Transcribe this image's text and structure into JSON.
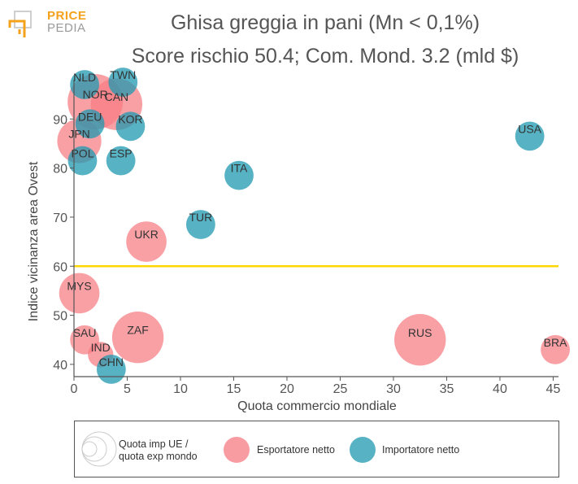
{
  "logo": {
    "line1": "PRICE",
    "line2": "PEDIA"
  },
  "title_line1": "Ghisa greggia in pani (Mn < 0,1%)",
  "title_line2": "Score rischio 50.4; Com. Mond. 3.2 (mld $)",
  "colors": {
    "exporter": "#f77b82",
    "importer": "#1f98b0",
    "threshold": "#ffd700",
    "axis": "#555555"
  },
  "legend": {
    "size_label": "Quota imp UE / quota exp mondo",
    "size_label_line1": "Quota imp UE /",
    "size_label_line2": "quota exp mondo",
    "exporter_label": "Esportatore netto",
    "importer_label": "Importatore netto"
  },
  "chart_data": {
    "type": "scatter",
    "xlabel": "Quota commercio mondiale",
    "ylabel": "Indice vicinanza area Ovest",
    "xlim": [
      0,
      45.5
    ],
    "ylim": [
      37.5,
      98
    ],
    "xticks": [
      0,
      5,
      10,
      15,
      20,
      25,
      30,
      35,
      40,
      45
    ],
    "yticks": [
      40,
      50,
      60,
      70,
      80,
      90
    ],
    "threshold_y": 60,
    "grid": false,
    "points": [
      {
        "label": "NOR",
        "x": 2.0,
        "y": 93.5,
        "type": "exporter",
        "size": 1.0
      },
      {
        "label": "CAN",
        "x": 4.0,
        "y": 93.0,
        "type": "exporter",
        "size": 0.9
      },
      {
        "label": "JPN",
        "x": 0.5,
        "y": 85.5,
        "type": "exporter",
        "size": 0.7
      },
      {
        "label": "UKR",
        "x": 6.8,
        "y": 65.0,
        "type": "exporter",
        "size": 0.6
      },
      {
        "label": "MYS",
        "x": 0.5,
        "y": 54.5,
        "type": "exporter",
        "size": 0.6
      },
      {
        "label": "SAU",
        "x": 1.0,
        "y": 45.0,
        "type": "exporter",
        "size": 0.3
      },
      {
        "label": "ZAF",
        "x": 6.0,
        "y": 45.5,
        "type": "exporter",
        "size": 0.9
      },
      {
        "label": "IND",
        "x": 2.5,
        "y": 42.0,
        "type": "exporter",
        "size": 0.2
      },
      {
        "label": "RUS",
        "x": 32.5,
        "y": 45.0,
        "type": "exporter",
        "size": 0.9
      },
      {
        "label": "BRA",
        "x": 45.2,
        "y": 43.0,
        "type": "exporter",
        "size": 0.3
      },
      {
        "label": "NLD",
        "x": 1.0,
        "y": 97.0,
        "type": "importer",
        "size": 0.3
      },
      {
        "label": "TWN",
        "x": 4.6,
        "y": 97.5,
        "type": "importer",
        "size": 0.3
      },
      {
        "label": "DEU",
        "x": 1.5,
        "y": 89.0,
        "type": "importer",
        "size": 0.3
      },
      {
        "label": "KOR",
        "x": 5.3,
        "y": 88.5,
        "type": "importer",
        "size": 0.3
      },
      {
        "label": "POL",
        "x": 0.8,
        "y": 81.5,
        "type": "importer",
        "size": 0.3
      },
      {
        "label": "ESP",
        "x": 4.4,
        "y": 81.5,
        "type": "importer",
        "size": 0.3
      },
      {
        "label": "ITA",
        "x": 15.5,
        "y": 78.5,
        "type": "importer",
        "size": 0.3
      },
      {
        "label": "TUR",
        "x": 11.9,
        "y": 68.5,
        "type": "importer",
        "size": 0.3
      },
      {
        "label": "CHN",
        "x": 3.5,
        "y": 39.0,
        "type": "importer",
        "size": 0.3
      },
      {
        "label": "USA",
        "x": 42.8,
        "y": 86.5,
        "type": "importer",
        "size": 0.3
      }
    ]
  }
}
